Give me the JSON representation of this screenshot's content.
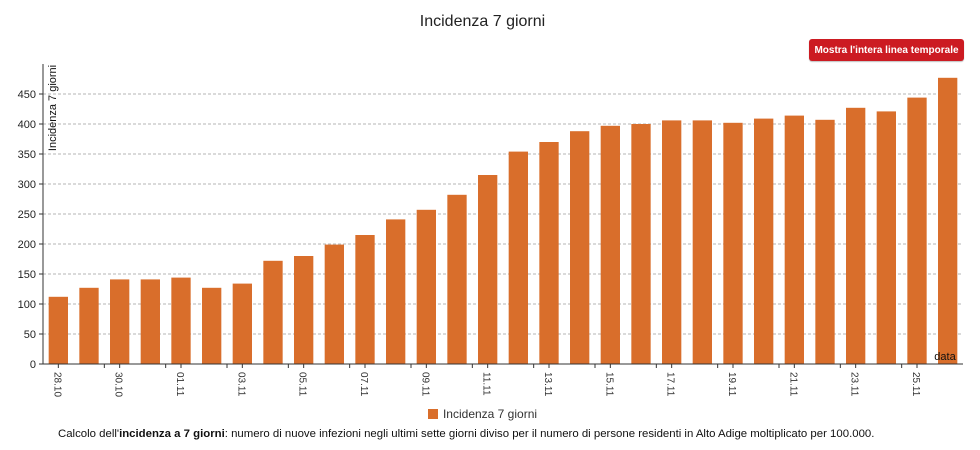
{
  "header": {
    "title": "Incidenza 7 giorni",
    "timeline_button_label": "Mostra l'intera linea temporale"
  },
  "caption": {
    "prefix": "Calcolo dell'",
    "term": "incidenza a 7 giorni",
    "text": ": numero di nuove infezioni negli ultimi sette giorni diviso per il numero di persone residenti in Alto Adige moltiplicato per 100.000."
  },
  "colors": {
    "bar": "#d96e2b",
    "button": "#cc1b22"
  },
  "chart_data": {
    "type": "bar",
    "title": "Incidenza 7 giorni",
    "xlabel": "data",
    "ylabel": "Incidenza 7 giorni",
    "ylim": [
      0,
      500
    ],
    "yticks": [
      0,
      50,
      100,
      150,
      200,
      250,
      300,
      350,
      400,
      450
    ],
    "grid": true,
    "legend_position": "bottom",
    "categories": [
      "28.10",
      "29.10",
      "30.10",
      "31.10",
      "01.11",
      "02.11",
      "03.11",
      "04.11",
      "05.11",
      "06.11",
      "07.11",
      "08.11",
      "09.11",
      "10.11",
      "11.11",
      "12.11",
      "13.11",
      "14.11",
      "15.11",
      "16.11",
      "17.11",
      "18.11",
      "19.11",
      "20.11",
      "21.11",
      "22.11",
      "23.11",
      "24.11",
      "25.11",
      "26.11"
    ],
    "tick_labels": [
      "28.10",
      "30.10",
      "01.11",
      "03.11",
      "05.11",
      "07.11",
      "09.11",
      "11.11",
      "13.11",
      "15.11",
      "17.11",
      "19.11",
      "21.11",
      "23.11",
      "25.11"
    ],
    "series": [
      {
        "name": "Incidenza 7 giorni",
        "values": [
          112,
          127,
          141,
          141,
          144,
          127,
          134,
          172,
          180,
          199,
          215,
          241,
          257,
          282,
          315,
          354,
          370,
          388,
          397,
          400,
          406,
          406,
          402,
          409,
          414,
          407,
          427,
          421,
          444,
          477
        ]
      }
    ]
  }
}
